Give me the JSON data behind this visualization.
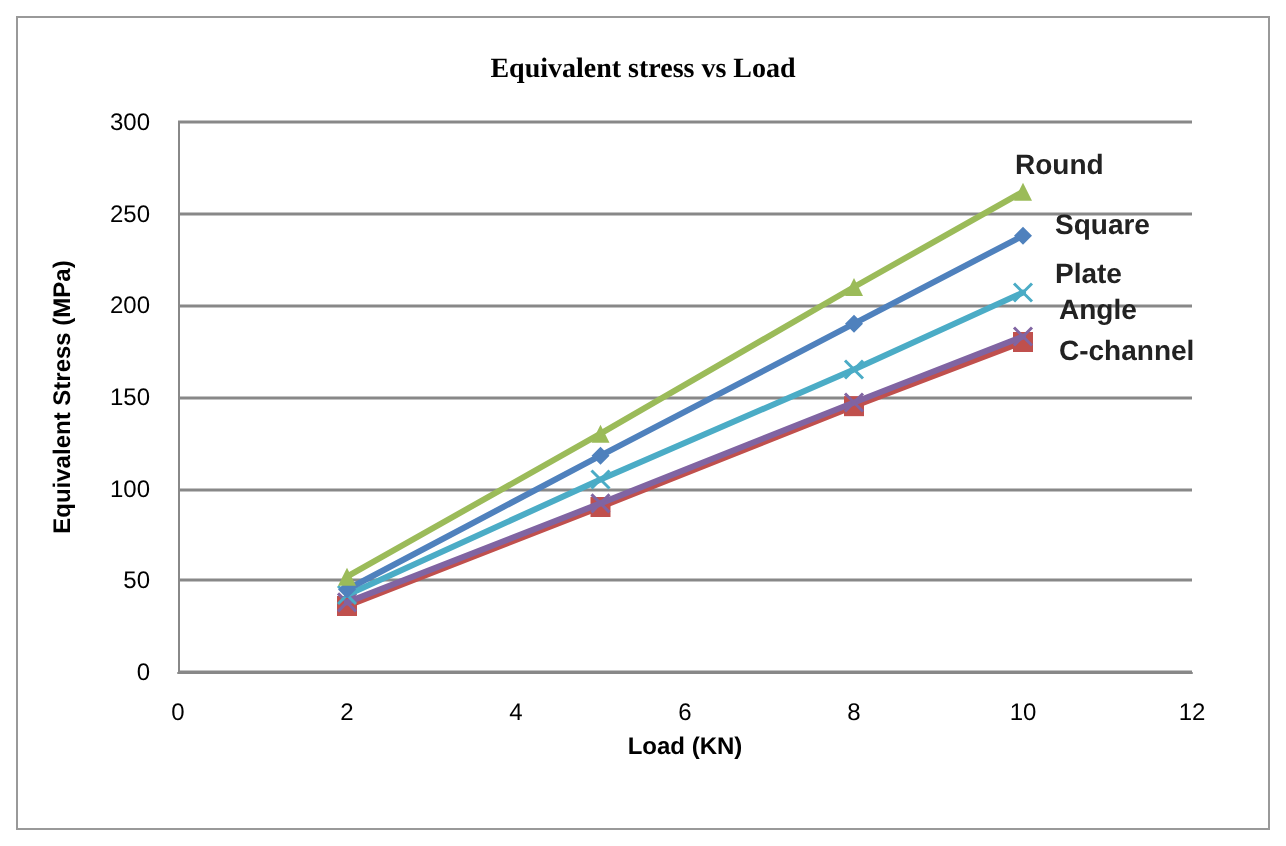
{
  "chart_data": {
    "type": "line",
    "title": "Equivalent stress vs Load",
    "xlabel": "Load (KN)",
    "ylabel": "Equivalent Stress (MPa)",
    "x": [
      2,
      5,
      8,
      10
    ],
    "series": [
      {
        "name": "Round",
        "color": "#9bbb59",
        "marker": "triangle",
        "values": [
          52,
          130,
          210,
          262
        ]
      },
      {
        "name": "Square",
        "color": "#4f81bd",
        "marker": "diamond",
        "values": [
          45,
          118,
          190,
          238
        ]
      },
      {
        "name": "Plate",
        "color": "#4bacc6",
        "marker": "cross",
        "values": [
          42,
          105,
          165,
          207
        ]
      },
      {
        "name": "Angle",
        "color": "#8064a2",
        "marker": "cross",
        "values": [
          38,
          92,
          147,
          183
        ]
      },
      {
        "name": "C-channel",
        "color": "#c0504d",
        "marker": "square",
        "values": [
          36,
          90,
          145,
          180
        ]
      }
    ],
    "xlim": [
      0,
      12
    ],
    "xticks": [
      0,
      2,
      4,
      6,
      8,
      10,
      12
    ],
    "ylim": [
      0,
      300
    ],
    "yticks": [
      0,
      50,
      100,
      150,
      200,
      250,
      300
    ],
    "grid": "y",
    "legend": false
  }
}
